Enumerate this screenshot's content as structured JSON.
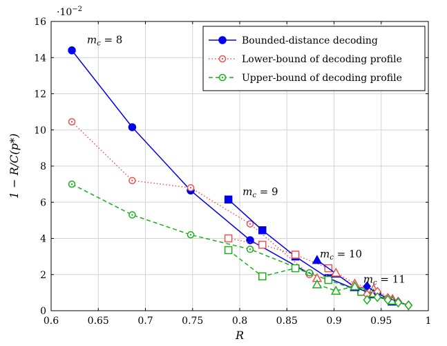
{
  "chart_data": {
    "type": "line",
    "title": "",
    "xlabel": "R",
    "ylabel": "1 − R/C(p*)",
    "y_multiplier_label": "·10−2",
    "xlim": [
      0.6,
      1.0
    ],
    "ylim": [
      0,
      16
    ],
    "xticks": [
      "0.6",
      "0.65",
      "0.7",
      "0.75",
      "0.8",
      "0.85",
      "0.9",
      "0.95",
      "1"
    ],
    "yticks": [
      "0",
      "2",
      "4",
      "6",
      "8",
      "10",
      "12",
      "14",
      "16"
    ],
    "grid": true,
    "legend_position": "top-right",
    "legend": [
      {
        "label": "Bounded-distance decoding",
        "color": "#0000ee",
        "style": "solid",
        "marker": "filled-circle"
      },
      {
        "label": "Lower-bound of decoding profile",
        "color": "#f05050",
        "style": "dotted",
        "marker": "open-circle"
      },
      {
        "label": "Upper-bound of decoding profile",
        "color": "#16b016",
        "style": "dashed",
        "marker": "open-circle"
      }
    ],
    "annotations": [
      {
        "text": "m",
        "sub": "c",
        "eq": " = 8",
        "x": 0.638,
        "y": 14.8
      },
      {
        "text": "m",
        "sub": "c",
        "eq": " = 9",
        "x": 0.803,
        "y": 6.4
      },
      {
        "text": "m",
        "sub": "c",
        "eq": " = 10",
        "x": 0.885,
        "y": 2.95
      },
      {
        "text": "m",
        "sub": "c",
        "eq": " = 11",
        "x": 0.931,
        "y": 1.55
      }
    ],
    "series": [
      {
        "name": "Bounded-distance decoding",
        "group": "mc=8",
        "color": "#0000ee",
        "style": "solid",
        "marker": "filled-circle",
        "x": [
          0.622,
          0.686,
          0.748,
          0.811,
          0.874
        ],
        "y": [
          14.4,
          10.15,
          6.65,
          3.9,
          2.05
        ]
      },
      {
        "group": "mc=8 lower",
        "color": "#f05050",
        "style": "dotted",
        "marker": "open-circle",
        "x": [
          0.622,
          0.686,
          0.748,
          0.811,
          0.874
        ],
        "y": [
          10.45,
          7.2,
          6.8,
          4.8,
          2.0
        ]
      },
      {
        "group": "mc=8 upper",
        "color": "#16b016",
        "style": "dashed",
        "marker": "open-circle",
        "x": [
          0.622,
          0.686,
          0.748,
          0.811,
          0.874
        ],
        "y": [
          7.0,
          5.3,
          4.2,
          3.4,
          2.1
        ]
      },
      {
        "group": "mc=9 bdd",
        "color": "#0000ee",
        "style": "solid",
        "marker": "filled-square",
        "x": [
          0.788,
          0.824,
          0.859,
          0.894,
          0.929
        ],
        "y": [
          6.15,
          4.45,
          3.0,
          1.8,
          1.05
        ]
      },
      {
        "group": "mc=9 lower",
        "color": "#f05050",
        "style": "dotted",
        "marker": "open-square",
        "x": [
          0.788,
          0.824,
          0.859,
          0.894,
          0.929
        ],
        "y": [
          4.0,
          3.65,
          3.1,
          2.35,
          1.1
        ]
      },
      {
        "group": "mc=9 upper",
        "color": "#16b016",
        "style": "dashed",
        "marker": "open-square",
        "x": [
          0.788,
          0.824,
          0.859,
          0.894,
          0.929
        ],
        "y": [
          3.35,
          1.9,
          2.35,
          1.7,
          1.05
        ]
      },
      {
        "group": "mc=10 bdd",
        "color": "#0000ee",
        "style": "solid",
        "marker": "filled-triangle",
        "x": [
          0.882,
          0.902,
          0.922,
          0.942,
          0.962
        ],
        "y": [
          2.8,
          2.05,
          1.3,
          0.9,
          0.5
        ]
      },
      {
        "group": "mc=10 lower",
        "color": "#f05050",
        "style": "dotted",
        "marker": "open-triangle",
        "x": [
          0.882,
          0.902,
          0.922,
          0.942,
          0.962
        ],
        "y": [
          1.8,
          2.1,
          1.5,
          1.2,
          0.65
        ]
      },
      {
        "group": "mc=10 upper",
        "color": "#16b016",
        "style": "dashed",
        "marker": "open-triangle",
        "x": [
          0.882,
          0.902,
          0.922,
          0.942,
          0.962
        ],
        "y": [
          1.45,
          1.1,
          1.35,
          0.95,
          0.55
        ]
      },
      {
        "group": "mc=11 bdd",
        "color": "#0000ee",
        "style": "solid",
        "marker": "filled-diamond",
        "x": [
          0.935,
          0.946,
          0.957,
          0.968,
          0.979
        ],
        "y": [
          1.35,
          0.95,
          0.7,
          0.5,
          0.3
        ]
      },
      {
        "group": "mc=11 lower",
        "color": "#f05050",
        "style": "dotted",
        "marker": "open-diamond",
        "x": [
          0.935,
          0.946,
          0.957,
          0.968,
          0.979
        ],
        "y": [
          0.9,
          1.05,
          0.7,
          0.5,
          0.3
        ]
      },
      {
        "group": "mc=11 upper",
        "color": "#16b016",
        "style": "dashed",
        "marker": "open-diamond",
        "x": [
          0.935,
          0.946,
          0.957,
          0.968,
          0.979
        ],
        "y": [
          0.6,
          0.75,
          0.6,
          0.45,
          0.3
        ]
      }
    ]
  }
}
